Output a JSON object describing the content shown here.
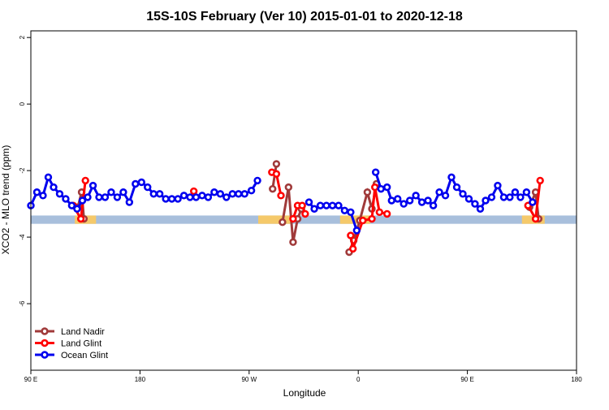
{
  "chart_data": {
    "type": "line",
    "title": "15S-10S February (Ver 10)   2015-01-01 to 2020-12-18",
    "xlabel": "Longitude",
    "ylabel": "XCO2 - MLO trend (ppm)",
    "xlim": [
      90,
      450
    ],
    "ylim": [
      -8,
      2.2
    ],
    "yticks": [
      2,
      0,
      -2,
      -4,
      -6
    ],
    "yticklabels": [
      "2",
      "0",
      "-2",
      "-4",
      "-6"
    ],
    "xticks": [
      90,
      162,
      234,
      306,
      378,
      450
    ],
    "xticklabels": [
      "90 E",
      "180",
      "90 W",
      "0",
      "90 E",
      "180"
    ],
    "grid": false,
    "legend_position": "bottom-left",
    "colors": {
      "land_nadir": "#a03a3a",
      "land_glint": "#ff0000",
      "ocean_glint": "#0000ee",
      "band_ocean": "#a8bfdc",
      "band_land": "#f5c96a"
    },
    "series": [
      {
        "name": "Land Nadir",
        "key": "land_nadir",
        "segments": [
          [
            [
              121,
              -3.1
            ],
            [
              123.5,
              -2.65
            ],
            [
              125,
              -3.45
            ]
          ],
          [
            [
              249.5,
              -2.55
            ],
            [
              252,
              -1.8
            ]
          ],
          [
            [
              256,
              -3.55
            ],
            [
              260,
              -2.5
            ],
            [
              263,
              -4.15
            ],
            [
              266,
              -3.45
            ],
            [
              268.5,
              -3.15
            ]
          ],
          [
            [
              300,
              -4.45
            ],
            [
              303,
              -4.1
            ],
            [
              307,
              -3.5
            ],
            [
              312,
              -2.65
            ],
            [
              315,
              -3.15
            ],
            [
              318,
              -2.4
            ]
          ],
          [
            [
              419,
              -3.1
            ],
            [
              423,
              -2.65
            ],
            [
              425,
              -3.45
            ]
          ]
        ]
      },
      {
        "name": "Land Glint",
        "key": "land_glint",
        "segments": [
          [
            [
              118,
              -3.05
            ],
            [
              123,
              -3.45
            ],
            [
              126,
              -2.3
            ]
          ],
          [
            [
              197.5,
              -2.62
            ]
          ],
          [
            [
              249,
              -2.05
            ],
            [
              252,
              -2.1
            ],
            [
              255,
              -2.75
            ]
          ],
          [
            [
              263,
              -3.45
            ],
            [
              266,
              -3.05
            ],
            [
              269,
              -3.05
            ],
            [
              271,
              -3.3
            ]
          ],
          [
            [
              301,
              -3.95
            ],
            [
              302.5,
              -4.35
            ],
            [
              309,
              -3.5
            ],
            [
              315,
              -3.45
            ],
            [
              317,
              -2.5
            ],
            [
              320,
              -3.25
            ],
            [
              325,
              -3.3
            ]
          ],
          [
            [
              418,
              -3.05
            ],
            [
              423,
              -3.45
            ],
            [
              426,
              -2.3
            ]
          ]
        ]
      },
      {
        "name": "Ocean Glint",
        "key": "ocean_glint",
        "segments": [
          [
            [
              90,
              -3.05
            ],
            [
              94,
              -2.65
            ],
            [
              98,
              -2.75
            ],
            [
              101.5,
              -2.2
            ],
            [
              105,
              -2.5
            ],
            [
              109,
              -2.7
            ],
            [
              113,
              -2.85
            ],
            [
              117,
              -3.05
            ],
            [
              120.5,
              -3.15
            ],
            [
              124,
              -2.9
            ],
            [
              127.5,
              -2.8
            ],
            [
              131,
              -2.45
            ],
            [
              135,
              -2.8
            ],
            [
              139,
              -2.8
            ],
            [
              143,
              -2.65
            ],
            [
              147,
              -2.8
            ],
            [
              151,
              -2.65
            ],
            [
              155,
              -2.95
            ],
            [
              159,
              -2.4
            ],
            [
              163,
              -2.35
            ],
            [
              167,
              -2.5
            ],
            [
              171,
              -2.7
            ],
            [
              175,
              -2.7
            ],
            [
              179,
              -2.85
            ],
            [
              183,
              -2.85
            ],
            [
              187,
              -2.85
            ],
            [
              191,
              -2.75
            ],
            [
              195,
              -2.8
            ],
            [
              199,
              -2.8
            ],
            [
              203,
              -2.75
            ],
            [
              207,
              -2.8
            ],
            [
              211,
              -2.65
            ],
            [
              215,
              -2.7
            ],
            [
              219,
              -2.8
            ],
            [
              223,
              -2.7
            ],
            [
              227,
              -2.7
            ],
            [
              231,
              -2.7
            ],
            [
              235.5,
              -2.6
            ],
            [
              239.5,
              -2.3
            ]
          ],
          [
            [
              273.5,
              -2.95
            ],
            [
              277,
              -3.15
            ],
            [
              281,
              -3.05
            ],
            [
              285,
              -3.05
            ],
            [
              289,
              -3.05
            ],
            [
              293,
              -3.05
            ],
            [
              297,
              -3.2
            ],
            [
              301,
              -3.25
            ],
            [
              305,
              -3.8
            ]
          ],
          [
            [
              317.5,
              -2.05
            ],
            [
              321,
              -2.55
            ],
            [
              325,
              -2.5
            ],
            [
              328,
              -2.9
            ],
            [
              332,
              -2.85
            ],
            [
              336,
              -3.0
            ],
            [
              340,
              -2.9
            ],
            [
              344,
              -2.75
            ],
            [
              348,
              -2.95
            ],
            [
              352,
              -2.9
            ],
            [
              355.5,
              -3.05
            ],
            [
              359.5,
              -2.65
            ],
            [
              363.5,
              -2.75
            ],
            [
              367.5,
              -2.2
            ],
            [
              371,
              -2.5
            ],
            [
              375,
              -2.7
            ],
            [
              379,
              -2.85
            ],
            [
              383,
              -3.0
            ],
            [
              386.5,
              -3.15
            ],
            [
              390,
              -2.9
            ],
            [
              394,
              -2.8
            ],
            [
              398,
              -2.45
            ],
            [
              402,
              -2.8
            ],
            [
              406,
              -2.8
            ],
            [
              409.5,
              -2.65
            ],
            [
              413,
              -2.8
            ],
            [
              417,
              -2.65
            ],
            [
              421,
              -2.95
            ]
          ]
        ]
      }
    ],
    "surface_band": {
      "y_range": [
        -3.6,
        -3.35
      ],
      "land_x_ranges": [
        [
          119,
          133
        ],
        [
          240,
          262
        ],
        [
          294,
          314
        ],
        [
          414,
          429
        ]
      ]
    }
  }
}
